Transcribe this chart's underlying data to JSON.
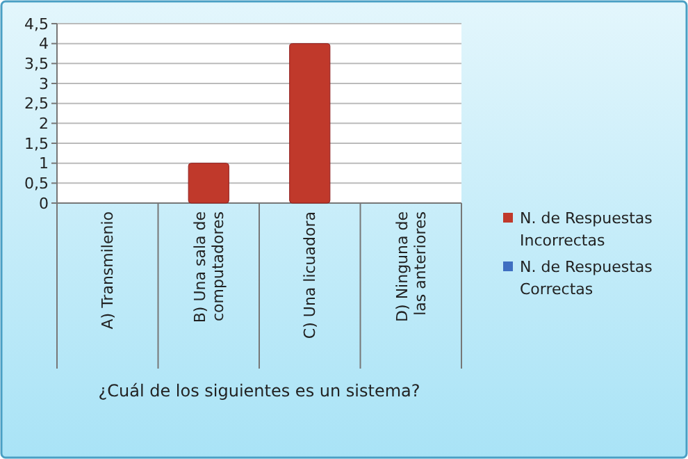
{
  "chart_data": {
    "type": "bar",
    "xlabel": "¿Cuál de los siguientes es un sistema?",
    "categories": [
      "A) Transmilenio",
      "B) Una sala de computadores",
      "C) Una licuadora",
      "D) Ninguna de las anteriores"
    ],
    "series": [
      {
        "name": "N. de Respuestas Incorrectas",
        "color": "#c0392b",
        "values": [
          0,
          1,
          4,
          0
        ]
      },
      {
        "name": "N. de Respuestas Correctas",
        "color": "#3f6fc1",
        "values": [
          null,
          null,
          null,
          null
        ]
      }
    ],
    "ylim": [
      0,
      4.5
    ],
    "yticks": [
      {
        "value": 0,
        "label": "0"
      },
      {
        "value": 0.5,
        "label": "0,5"
      },
      {
        "value": 1,
        "label": "1"
      },
      {
        "value": 1.5,
        "label": "1,5"
      },
      {
        "value": 2,
        "label": "2"
      },
      {
        "value": 2.5,
        "label": "2,5"
      },
      {
        "value": 3,
        "label": "3"
      },
      {
        "value": 3.5,
        "label": "3,5"
      },
      {
        "value": 4,
        "label": "4"
      },
      {
        "value": 4.5,
        "label": "4,5"
      }
    ],
    "grid": "y",
    "legend": "right"
  }
}
